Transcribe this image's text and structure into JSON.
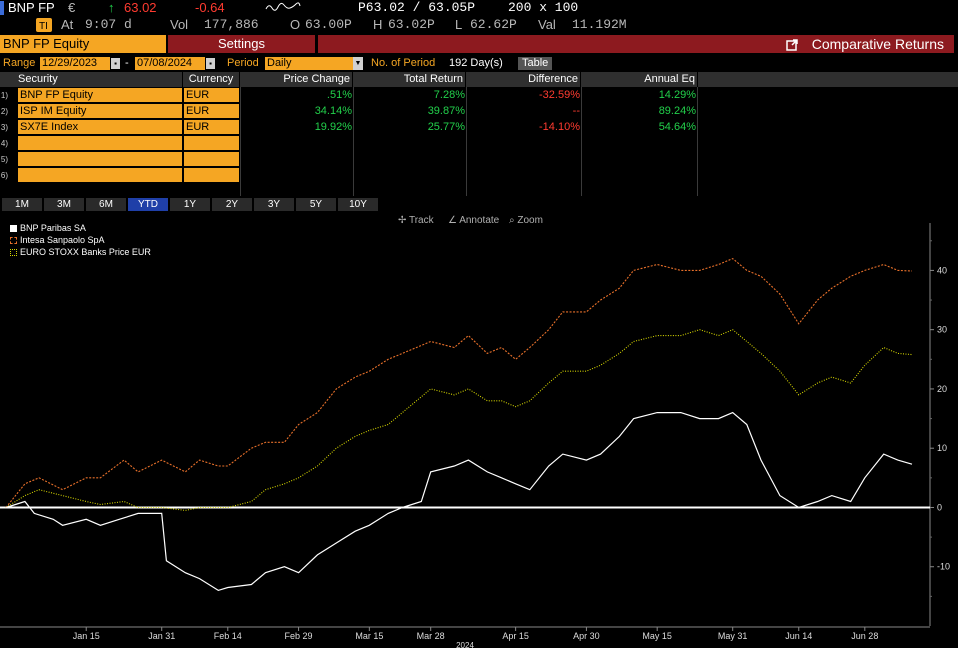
{
  "ticker": {
    "security": "BNP FP",
    "currency_sym": "€",
    "arrow": "↑",
    "last": "63.02",
    "change": "-0.64",
    "bid_ask": "P63.02 / 63.05P",
    "size": "200 x 100",
    "at_label": "At",
    "time": "9:07 d",
    "vol_label": "Vol",
    "volume": "177,886",
    "o_label": "O",
    "open": "63.00P",
    "h_label": "H",
    "high": "63.02P",
    "l_label": "L",
    "low": "62.62P",
    "val_label": "Val",
    "value": "11.192M"
  },
  "tabs": {
    "security": "BNP FP Equity",
    "settings": "Settings",
    "title": "Comparative Returns"
  },
  "range": {
    "label": "Range",
    "start": "12/29/2023",
    "dash": "-",
    "end": "07/08/2024",
    "period_label": "Period",
    "period": "Daily",
    "nop_label": "No. of Period",
    "nop_value": "192 Day(s)",
    "table_btn": "Table"
  },
  "table": {
    "headers": [
      "Security",
      "Currency",
      "Price Change",
      "Total Return",
      "Difference",
      "Annual Eq"
    ],
    "rows": [
      {
        "n": "1)",
        "security": "BNP FP Equity",
        "currency": "EUR",
        "price_change": ".51%",
        "total_return": "7.28%",
        "difference": "-32.59%",
        "annual_eq": "14.29%"
      },
      {
        "n": "2)",
        "security": "ISP IM Equity",
        "currency": "EUR",
        "price_change": "34.14%",
        "total_return": "39.87%",
        "difference": "--",
        "annual_eq": "89.24%"
      },
      {
        "n": "3)",
        "security": "SX7E Index",
        "currency": "EUR",
        "price_change": "19.92%",
        "total_return": "25.77%",
        "difference": "-14.10%",
        "annual_eq": "54.64%"
      },
      {
        "n": "4)",
        "security": "",
        "currency": "",
        "price_change": "",
        "total_return": "",
        "difference": "",
        "annual_eq": ""
      },
      {
        "n": "5)",
        "security": "",
        "currency": "",
        "price_change": "",
        "total_return": "",
        "difference": "",
        "annual_eq": ""
      },
      {
        "n": "6)",
        "security": "",
        "currency": "",
        "price_change": "",
        "total_return": "",
        "difference": "",
        "annual_eq": ""
      }
    ]
  },
  "periods": [
    "1M",
    "3M",
    "6M",
    "YTD",
    "1Y",
    "2Y",
    "3Y",
    "5Y",
    "10Y"
  ],
  "active_period": "YTD",
  "tools": {
    "track": "Track",
    "annotate": "Annotate",
    "zoom": "Zoom"
  },
  "colors": {
    "amber": "#f5a623",
    "maroon": "#8d1a1f",
    "bnp": "#ffffff",
    "isp": "#e8702a",
    "sx7e": "#d6d600"
  },
  "chart_data": {
    "type": "line",
    "x_tick_labels": [
      "Jan 15",
      "Jan 31",
      "Feb 14",
      "Feb 29",
      "Mar 15",
      "Mar 28",
      "Apr 15",
      "Apr 30",
      "May 15",
      "May 31",
      "Jun 14",
      "Jun 28"
    ],
    "x_tick_dates": [
      "2024-01-15",
      "2024-01-31",
      "2024-02-14",
      "2024-02-29",
      "2024-03-15",
      "2024-03-28",
      "2024-04-15",
      "2024-04-30",
      "2024-05-15",
      "2024-05-31",
      "2024-06-14",
      "2024-06-28"
    ],
    "year_label": "2024",
    "y_ticks": [
      -10,
      0,
      10,
      20,
      30,
      40
    ],
    "ylim": [
      -20,
      48
    ],
    "series": [
      {
        "name": "BNP Paribas SA",
        "style": "solid",
        "points": [
          [
            "2023-12-29",
            0
          ],
          [
            "2024-01-02",
            1
          ],
          [
            "2024-01-04",
            -1
          ],
          [
            "2024-01-08",
            -2
          ],
          [
            "2024-01-10",
            -3
          ],
          [
            "2024-01-15",
            -2
          ],
          [
            "2024-01-18",
            -3
          ],
          [
            "2024-01-22",
            -2
          ],
          [
            "2024-01-26",
            -1
          ],
          [
            "2024-01-30",
            -1
          ],
          [
            "2024-01-31",
            -1
          ],
          [
            "2024-02-01",
            -9
          ],
          [
            "2024-02-05",
            -11
          ],
          [
            "2024-02-08",
            -12
          ],
          [
            "2024-02-12",
            -14
          ],
          [
            "2024-02-14",
            -13.5
          ],
          [
            "2024-02-19",
            -13
          ],
          [
            "2024-02-22",
            -11
          ],
          [
            "2024-02-26",
            -10
          ],
          [
            "2024-02-29",
            -11
          ],
          [
            "2024-03-04",
            -8
          ],
          [
            "2024-03-08",
            -6
          ],
          [
            "2024-03-12",
            -4
          ],
          [
            "2024-03-15",
            -3
          ],
          [
            "2024-03-19",
            -1
          ],
          [
            "2024-03-22",
            0
          ],
          [
            "2024-03-26",
            1
          ],
          [
            "2024-03-28",
            6
          ],
          [
            "2024-04-02",
            7
          ],
          [
            "2024-04-05",
            8
          ],
          [
            "2024-04-09",
            6
          ],
          [
            "2024-04-12",
            5
          ],
          [
            "2024-04-15",
            4
          ],
          [
            "2024-04-18",
            3
          ],
          [
            "2024-04-22",
            7
          ],
          [
            "2024-04-25",
            9
          ],
          [
            "2024-04-30",
            8
          ],
          [
            "2024-05-03",
            9
          ],
          [
            "2024-05-07",
            12
          ],
          [
            "2024-05-10",
            15
          ],
          [
            "2024-05-15",
            16
          ],
          [
            "2024-05-20",
            16
          ],
          [
            "2024-05-24",
            15
          ],
          [
            "2024-05-28",
            15
          ],
          [
            "2024-05-31",
            16
          ],
          [
            "2024-06-03",
            14
          ],
          [
            "2024-06-06",
            8
          ],
          [
            "2024-06-10",
            2
          ],
          [
            "2024-06-14",
            0
          ],
          [
            "2024-06-18",
            1
          ],
          [
            "2024-06-21",
            2
          ],
          [
            "2024-06-25",
            1
          ],
          [
            "2024-06-28",
            5
          ],
          [
            "2024-07-02",
            9
          ],
          [
            "2024-07-05",
            8
          ],
          [
            "2024-07-08",
            7.3
          ]
        ]
      },
      {
        "name": "Intesa Sanpaolo SpA",
        "style": "dashed",
        "points": [
          [
            "2023-12-29",
            0
          ],
          [
            "2024-01-02",
            4
          ],
          [
            "2024-01-05",
            5
          ],
          [
            "2024-01-10",
            3
          ],
          [
            "2024-01-15",
            5
          ],
          [
            "2024-01-18",
            5
          ],
          [
            "2024-01-23",
            8
          ],
          [
            "2024-01-26",
            6
          ],
          [
            "2024-01-31",
            8
          ],
          [
            "2024-02-05",
            6
          ],
          [
            "2024-02-08",
            8
          ],
          [
            "2024-02-12",
            7
          ],
          [
            "2024-02-14",
            7
          ],
          [
            "2024-02-19",
            10
          ],
          [
            "2024-02-22",
            11
          ],
          [
            "2024-02-26",
            11
          ],
          [
            "2024-02-29",
            14
          ],
          [
            "2024-03-04",
            16
          ],
          [
            "2024-03-08",
            20
          ],
          [
            "2024-03-12",
            22
          ],
          [
            "2024-03-15",
            23
          ],
          [
            "2024-03-19",
            25
          ],
          [
            "2024-03-22",
            26
          ],
          [
            "2024-03-28",
            28
          ],
          [
            "2024-04-02",
            27
          ],
          [
            "2024-04-05",
            29
          ],
          [
            "2024-04-09",
            26
          ],
          [
            "2024-04-12",
            27
          ],
          [
            "2024-04-15",
            25
          ],
          [
            "2024-04-18",
            27
          ],
          [
            "2024-04-22",
            30
          ],
          [
            "2024-04-25",
            33
          ],
          [
            "2024-04-30",
            33
          ],
          [
            "2024-05-03",
            35
          ],
          [
            "2024-05-07",
            37
          ],
          [
            "2024-05-10",
            40
          ],
          [
            "2024-05-15",
            41
          ],
          [
            "2024-05-20",
            40
          ],
          [
            "2024-05-24",
            40
          ],
          [
            "2024-05-28",
            41
          ],
          [
            "2024-05-31",
            42
          ],
          [
            "2024-06-03",
            40
          ],
          [
            "2024-06-06",
            39
          ],
          [
            "2024-06-10",
            36
          ],
          [
            "2024-06-14",
            31
          ],
          [
            "2024-06-18",
            35
          ],
          [
            "2024-06-21",
            37
          ],
          [
            "2024-06-25",
            39
          ],
          [
            "2024-06-28",
            40
          ],
          [
            "2024-07-02",
            41
          ],
          [
            "2024-07-05",
            40
          ],
          [
            "2024-07-08",
            39.9
          ]
        ]
      },
      {
        "name": "EURO STOXX Banks Price EUR",
        "style": "dotted",
        "points": [
          [
            "2023-12-29",
            0
          ],
          [
            "2024-01-02",
            2
          ],
          [
            "2024-01-05",
            3
          ],
          [
            "2024-01-10",
            2
          ],
          [
            "2024-01-15",
            1
          ],
          [
            "2024-01-18",
            0.5
          ],
          [
            "2024-01-23",
            1
          ],
          [
            "2024-01-26",
            0
          ],
          [
            "2024-01-31",
            0
          ],
          [
            "2024-02-05",
            -0.5
          ],
          [
            "2024-02-08",
            0
          ],
          [
            "2024-02-12",
            0
          ],
          [
            "2024-02-14",
            0
          ],
          [
            "2024-02-19",
            1
          ],
          [
            "2024-02-22",
            3
          ],
          [
            "2024-02-26",
            4
          ],
          [
            "2024-02-29",
            5
          ],
          [
            "2024-03-04",
            7
          ],
          [
            "2024-03-08",
            10
          ],
          [
            "2024-03-12",
            12
          ],
          [
            "2024-03-15",
            13
          ],
          [
            "2024-03-19",
            14
          ],
          [
            "2024-03-22",
            16
          ],
          [
            "2024-03-28",
            20
          ],
          [
            "2024-04-02",
            19
          ],
          [
            "2024-04-05",
            20
          ],
          [
            "2024-04-09",
            18
          ],
          [
            "2024-04-12",
            18
          ],
          [
            "2024-04-15",
            17
          ],
          [
            "2024-04-18",
            18
          ],
          [
            "2024-04-22",
            21
          ],
          [
            "2024-04-25",
            23
          ],
          [
            "2024-04-30",
            23
          ],
          [
            "2024-05-03",
            24
          ],
          [
            "2024-05-07",
            26
          ],
          [
            "2024-05-10",
            28
          ],
          [
            "2024-05-15",
            29
          ],
          [
            "2024-05-20",
            29
          ],
          [
            "2024-05-24",
            30
          ],
          [
            "2024-05-28",
            29
          ],
          [
            "2024-05-31",
            30
          ],
          [
            "2024-06-03",
            28
          ],
          [
            "2024-06-06",
            26
          ],
          [
            "2024-06-10",
            23
          ],
          [
            "2024-06-14",
            19
          ],
          [
            "2024-06-18",
            21
          ],
          [
            "2024-06-21",
            22
          ],
          [
            "2024-06-25",
            21
          ],
          [
            "2024-06-28",
            24
          ],
          [
            "2024-07-02",
            27
          ],
          [
            "2024-07-05",
            26
          ],
          [
            "2024-07-08",
            25.8
          ]
        ]
      }
    ]
  }
}
